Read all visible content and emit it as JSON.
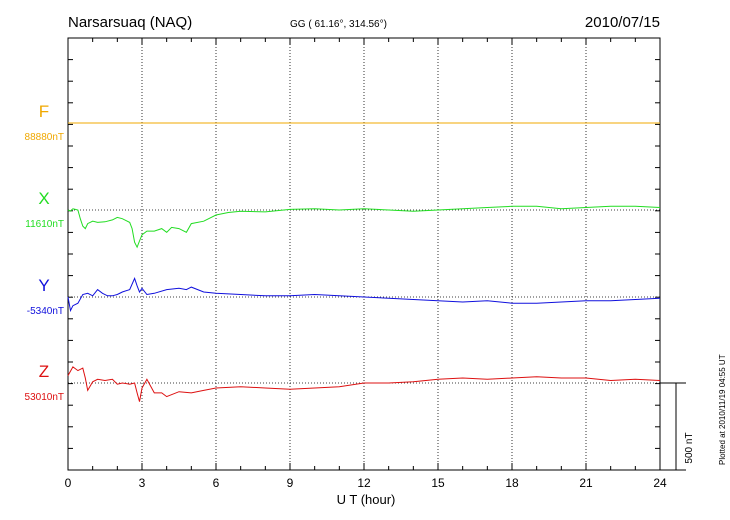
{
  "header": {
    "station": "Narsarsuaq (NAQ)",
    "coords": "GG ( 61.16°, 314.56°)",
    "date": "2010/07/15"
  },
  "plotted_note": "Plotted at 2010/11/19 04:55 UT",
  "scale_label": "500 nT",
  "chart_data": {
    "type": "line",
    "xlabel": "U T (hour)",
    "xlim": [
      0,
      24
    ],
    "x_ticks": [
      "0",
      "3",
      "6",
      "9",
      "12",
      "15",
      "18",
      "21",
      "24"
    ],
    "colors": {
      "F": "#f0a800",
      "X": "#22dd22",
      "Y": "#1010dd",
      "Z": "#dd1010"
    },
    "scale_nT": 500,
    "series": [
      {
        "name": "F",
        "baseline_label": "88880nT",
        "x": [
          0,
          24
        ],
        "y": [
          0,
          0
        ]
      },
      {
        "name": "X",
        "baseline_label": "11610nT",
        "x": [
          0,
          0.1,
          0.2,
          0.3,
          0.4,
          0.5,
          0.6,
          0.7,
          0.8,
          1.0,
          1.2,
          1.5,
          1.8,
          2.0,
          2.2,
          2.5,
          2.6,
          2.7,
          2.8,
          2.9,
          3.0,
          3.2,
          3.5,
          3.8,
          4.0,
          4.2,
          4.5,
          4.8,
          5.0,
          5.5,
          6.0,
          6.5,
          7.0,
          8.0,
          9.0,
          10.0,
          11.0,
          12.0,
          13.0,
          14.0,
          15.0,
          16.0,
          17.0,
          18.0,
          19.0,
          20.0,
          21.0,
          22.0,
          23.0,
          24.0
        ],
        "y": [
          0,
          -10,
          10,
          5,
          0,
          -70,
          -130,
          -150,
          -110,
          -90,
          -100,
          -95,
          -80,
          -60,
          -70,
          -100,
          -150,
          -260,
          -300,
          -250,
          -200,
          -170,
          -170,
          -150,
          -180,
          -140,
          -150,
          -180,
          -110,
          -90,
          -40,
          -20,
          -10,
          -15,
          5,
          10,
          0,
          10,
          0,
          -10,
          0,
          10,
          20,
          30,
          30,
          10,
          20,
          30,
          30,
          20
        ]
      },
      {
        "name": "Y",
        "baseline_label": "-5340nT",
        "x": [
          0,
          0.1,
          0.2,
          0.4,
          0.6,
          0.8,
          1.0,
          1.2,
          1.4,
          1.6,
          1.8,
          2.0,
          2.2,
          2.5,
          2.7,
          2.8,
          2.9,
          3.0,
          3.2,
          3.5,
          4.0,
          4.5,
          4.8,
          5.0,
          5.5,
          6.0,
          7.0,
          8.0,
          9.0,
          10.0,
          11.0,
          12.0,
          13.0,
          14.0,
          15.0,
          16.0,
          17.0,
          18.0,
          19.0,
          20.0,
          21.0,
          22.0,
          23.0,
          24.0
        ],
        "y": [
          0,
          -110,
          -70,
          -50,
          20,
          30,
          10,
          60,
          30,
          10,
          10,
          20,
          40,
          60,
          150,
          90,
          40,
          70,
          20,
          30,
          60,
          70,
          60,
          80,
          40,
          30,
          20,
          10,
          10,
          20,
          10,
          0,
          -10,
          -20,
          -30,
          -40,
          -30,
          -50,
          -50,
          -40,
          -30,
          -30,
          -20,
          -10
        ]
      },
      {
        "name": "Z",
        "baseline_label": "53010nT",
        "x": [
          0,
          0.2,
          0.4,
          0.6,
          0.7,
          0.8,
          1.0,
          1.2,
          1.5,
          1.8,
          2.0,
          2.2,
          2.5,
          2.7,
          2.8,
          2.9,
          3.0,
          3.2,
          3.5,
          3.8,
          4.0,
          4.5,
          5.0,
          5.5,
          6.0,
          7.0,
          8.0,
          9.0,
          10.0,
          11.0,
          12.0,
          13.0,
          14.0,
          15.0,
          16.0,
          17.0,
          18.0,
          19.0,
          20.0,
          21.0,
          22.0,
          23.0,
          24.0
        ],
        "y": [
          60,
          130,
          100,
          120,
          40,
          -60,
          10,
          30,
          20,
          30,
          -10,
          0,
          -10,
          0,
          -80,
          -150,
          -40,
          30,
          -80,
          -80,
          -110,
          -70,
          -80,
          -60,
          -40,
          -30,
          -40,
          -50,
          -40,
          -30,
          0,
          0,
          10,
          30,
          40,
          30,
          40,
          50,
          40,
          40,
          20,
          30,
          20
        ]
      }
    ]
  }
}
